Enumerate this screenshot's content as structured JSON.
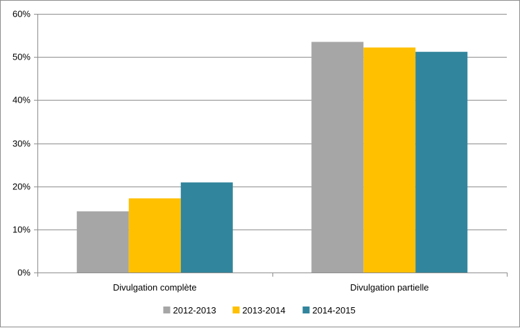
{
  "chart_data": {
    "type": "bar",
    "title": "",
    "xlabel": "",
    "ylabel": "",
    "categories": [
      "Divulgation complète",
      "Divulgation partielle"
    ],
    "series": [
      {
        "name": "2012-2013",
        "color": "#a6a6a6",
        "values": [
          14.2,
          53.5
        ]
      },
      {
        "name": "2013-2014",
        "color": "#ffc000",
        "values": [
          17.2,
          52.2
        ]
      },
      {
        "name": "2014-2015",
        "color": "#31859c",
        "values": [
          20.9,
          51.2
        ]
      }
    ],
    "ylim": [
      0,
      60
    ],
    "yticks": [
      0,
      10,
      20,
      30,
      40,
      50,
      60
    ],
    "ytick_labels": [
      "0%",
      "10%",
      "20%",
      "30%",
      "40%",
      "50%",
      "60%"
    ],
    "grid": true,
    "legend_position": "bottom"
  }
}
